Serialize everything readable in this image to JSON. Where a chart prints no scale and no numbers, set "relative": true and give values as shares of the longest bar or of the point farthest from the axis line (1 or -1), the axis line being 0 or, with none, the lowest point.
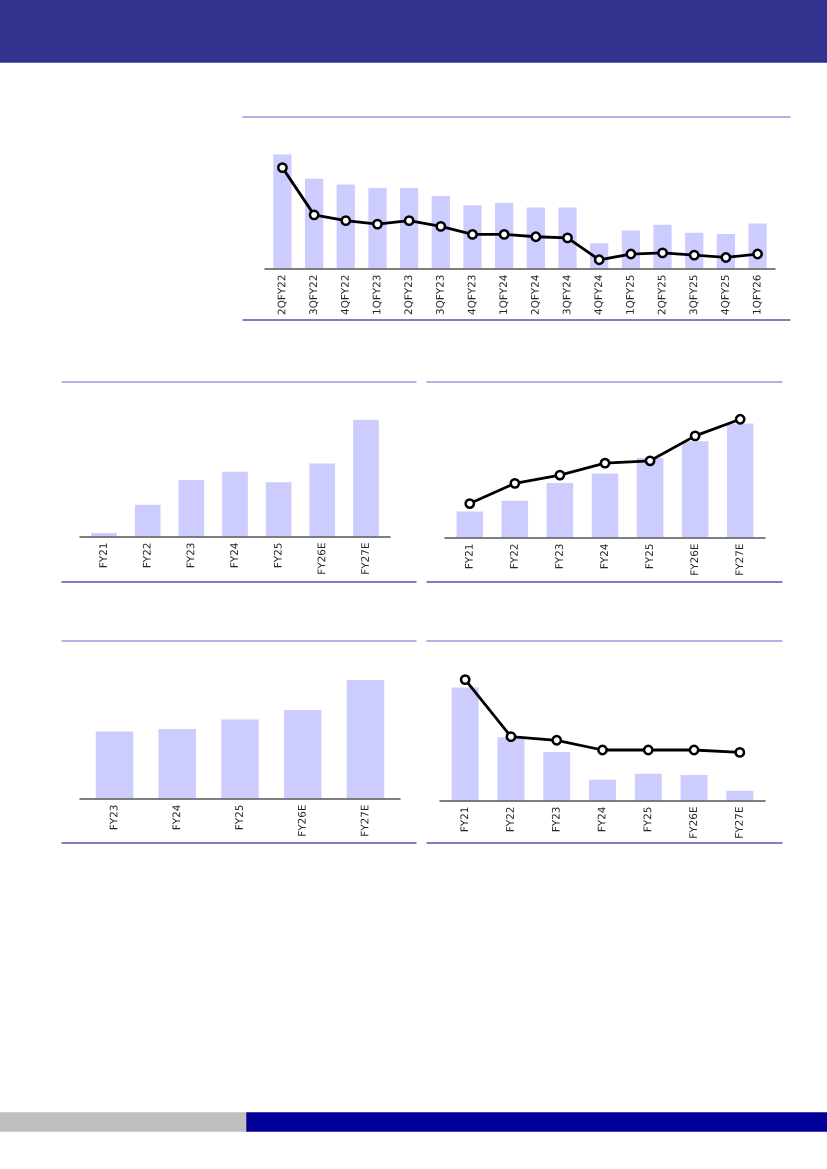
{
  "chart_data": [
    {
      "type": "bar",
      "relative": true,
      "categories": [
        "2QFY22",
        "3QFY22",
        "4QFY22",
        "1QFY23",
        "2QFY23",
        "3QFY23",
        "4QFY23",
        "1QFY24",
        "2QFY24",
        "3QFY24",
        "4QFY24",
        "1QFY25",
        "2QFY25",
        "3QFY25",
        "4QFY25",
        "1QFY26"
      ],
      "marker": "circle",
      "series": [
        {
          "color": "#ccccff",
          "values": [
            1,
            0.79,
            0.74,
            0.71,
            0.71,
            0.64,
            0.56,
            0.58,
            0.54,
            0.54,
            0.23,
            0.34,
            0.39,
            0.32,
            0.31,
            0.4
          ]
        },
        {
          "type": "line",
          "color": "#000000",
          "values": [
            0.88,
            0.47,
            0.42,
            0.39,
            0.42,
            0.37,
            0.3,
            0.3,
            0.28,
            0.27,
            0.08,
            0.13,
            0.14,
            0.12,
            0.1,
            0.13
          ]
        }
      ]
    },
    {
      "type": "bar",
      "relative": true,
      "categories": [
        "FY21",
        "FY22",
        "FY23",
        "FY24",
        "FY25",
        "FY26E",
        "FY27E"
      ],
      "series": [
        {
          "color": "#ccccff",
          "values": [
            0.04,
            0.28,
            0.49,
            0.56,
            0.47,
            0.63,
            1
          ]
        }
      ]
    },
    {
      "type": "bar",
      "relative": true,
      "categories": [
        "FY21",
        "FY22",
        "FY23",
        "FY24",
        "FY25",
        "FY26E",
        "FY27E"
      ],
      "marker": "circle",
      "series": [
        {
          "color": "#ccccff",
          "values": [
            0.23,
            0.32,
            0.47,
            0.55,
            0.68,
            0.82,
            0.97
          ]
        },
        {
          "type": "line",
          "color": "#000000",
          "values": [
            0.29,
            0.46,
            0.53,
            0.63,
            0.65,
            0.86,
            1
          ]
        }
      ]
    },
    {
      "type": "bar",
      "relative": true,
      "categories": [
        "FY23",
        "FY24",
        "FY25",
        "FY26E",
        "FY27E"
      ],
      "series": [
        {
          "color": "#ccccff",
          "values": [
            0.57,
            0.59,
            0.67,
            0.75,
            1
          ]
        }
      ]
    },
    {
      "type": "bar",
      "relative": true,
      "categories": [
        "FY21",
        "FY22",
        "FY23",
        "FY24",
        "FY25",
        "FY26E",
        "FY27E"
      ],
      "marker": "circle",
      "series": [
        {
          "color": "#ccccff",
          "values": [
            0.94,
            0.53,
            0.41,
            0.18,
            0.23,
            0.22,
            0.09
          ]
        },
        {
          "type": "line",
          "color": "#000000",
          "values": [
            1,
            0.53,
            0.5,
            0.42,
            0.42,
            0.42,
            0.4
          ]
        }
      ]
    }
  ]
}
